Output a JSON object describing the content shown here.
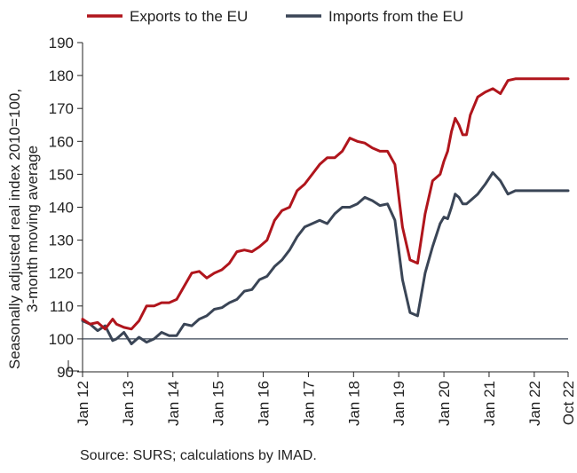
{
  "chart_data": {
    "type": "line",
    "title": "",
    "ylabel_line1": "Seasonally adjusted real index 2010=100,",
    "ylabel_line2": "3-month moving average",
    "ylim": [
      90,
      190
    ],
    "yticks": [
      90,
      100,
      110,
      120,
      130,
      140,
      150,
      160,
      170,
      180,
      190
    ],
    "x_range": [
      "2012-01",
      "2022-10"
    ],
    "xticks": [
      "Jan 12",
      "Jan 13",
      "Jan 14",
      "Jan 15",
      "Jan 16",
      "Jan 17",
      "Jan 18",
      "Jan 19",
      "Jan 20",
      "Jan 21",
      "Jan 22",
      "Oct 22"
    ],
    "xtick_dates": [
      "2012-01",
      "2013-01",
      "2014-01",
      "2015-01",
      "2016-01",
      "2017-01",
      "2018-01",
      "2019-01",
      "2020-01",
      "2021-01",
      "2022-01",
      "2022-10"
    ],
    "axis_break": true,
    "reference_line": 100,
    "legend_position": "top",
    "colors": {
      "exports": "#b0151c",
      "imports": "#3a4556",
      "reference": "#3a4556",
      "axis": "#222222"
    },
    "series": [
      {
        "name": "Exports to the EU",
        "key": "exports",
        "x": [
          "2012-01",
          "2012-03",
          "2012-05",
          "2012-07",
          "2012-09",
          "2012-10",
          "2012-12",
          "2013-02",
          "2013-04",
          "2013-06",
          "2013-08",
          "2013-10",
          "2013-12",
          "2014-02",
          "2014-04",
          "2014-06",
          "2014-08",
          "2014-10",
          "2014-12",
          "2015-02",
          "2015-04",
          "2015-06",
          "2015-08",
          "2015-10",
          "2015-12",
          "2016-02",
          "2016-04",
          "2016-06",
          "2016-08",
          "2016-10",
          "2016-12",
          "2017-02",
          "2017-04",
          "2017-06",
          "2017-08",
          "2017-10",
          "2017-12",
          "2018-02",
          "2018-04",
          "2018-06",
          "2018-08",
          "2018-10",
          "2018-12",
          "2019-02",
          "2019-04",
          "2019-06",
          "2019-08",
          "2019-10",
          "2019-12",
          "2020-01",
          "2020-02",
          "2020-03",
          "2020-04",
          "2020-05",
          "2020-06",
          "2020-07",
          "2020-08",
          "2020-10",
          "2020-12",
          "2021-02",
          "2021-04",
          "2021-06",
          "2021-08",
          "2021-10",
          "2021-12",
          "2022-02",
          "2022-04",
          "2022-06",
          "2022-08",
          "2022-10"
        ],
        "values": [
          106,
          104.5,
          105,
          103,
          106,
          104.5,
          103.5,
          103,
          105.5,
          110,
          110,
          111,
          111,
          112,
          116,
          120,
          120.5,
          118.5,
          120,
          121,
          123,
          126.5,
          127,
          126.5,
          128,
          130,
          136,
          139,
          140,
          145,
          147,
          150,
          153,
          155,
          155,
          157,
          161,
          160,
          159.5,
          158,
          157,
          157,
          153,
          134,
          124,
          123,
          138,
          148,
          150,
          154,
          157,
          163,
          167,
          165,
          162,
          162,
          168,
          173.5,
          175,
          176,
          174.5,
          178.5,
          179,
          179,
          179,
          179,
          179,
          179,
          179,
          179
        ],
        "note_unused": ""
      },
      {
        "name": "Imports from the EU",
        "key": "imports",
        "x": [
          "2012-01",
          "2012-03",
          "2012-05",
          "2012-07",
          "2012-09",
          "2012-10",
          "2012-12",
          "2013-02",
          "2013-04",
          "2013-06",
          "2013-08",
          "2013-10",
          "2013-12",
          "2014-02",
          "2014-04",
          "2014-06",
          "2014-08",
          "2014-10",
          "2014-12",
          "2015-02",
          "2015-04",
          "2015-06",
          "2015-08",
          "2015-10",
          "2015-12",
          "2016-02",
          "2016-04",
          "2016-06",
          "2016-08",
          "2016-10",
          "2016-12",
          "2017-02",
          "2017-04",
          "2017-06",
          "2017-08",
          "2017-10",
          "2017-12",
          "2018-02",
          "2018-04",
          "2018-06",
          "2018-08",
          "2018-10",
          "2018-12",
          "2019-02",
          "2019-04",
          "2019-06",
          "2019-08",
          "2019-10",
          "2019-12",
          "2020-01",
          "2020-02",
          "2020-03",
          "2020-04",
          "2020-05",
          "2020-06",
          "2020-07",
          "2020-08",
          "2020-10",
          "2020-12",
          "2021-02",
          "2021-04",
          "2021-06",
          "2021-08",
          "2021-10",
          "2021-12",
          "2022-02",
          "2022-04",
          "2022-06",
          "2022-08",
          "2022-10"
        ],
        "values": [
          105.5,
          104.5,
          102.5,
          104,
          99.5,
          100,
          102,
          98.5,
          100.5,
          99,
          100,
          102,
          101,
          101,
          104.5,
          104,
          106,
          107,
          109,
          109.5,
          111,
          112,
          114.5,
          115,
          118,
          119,
          122,
          124,
          127,
          131,
          134,
          135,
          136,
          135,
          138,
          140,
          140,
          141,
          143,
          142,
          140.5,
          141,
          136,
          118,
          108,
          107,
          120,
          128,
          135,
          137,
          136.5,
          140,
          144,
          143,
          141,
          141,
          142,
          144,
          147,
          150.5,
          148,
          144,
          145,
          145,
          145,
          145,
          145,
          145,
          145,
          145
        ]
      }
    ],
    "source": "Source: SURS; calculations by IMAD."
  }
}
